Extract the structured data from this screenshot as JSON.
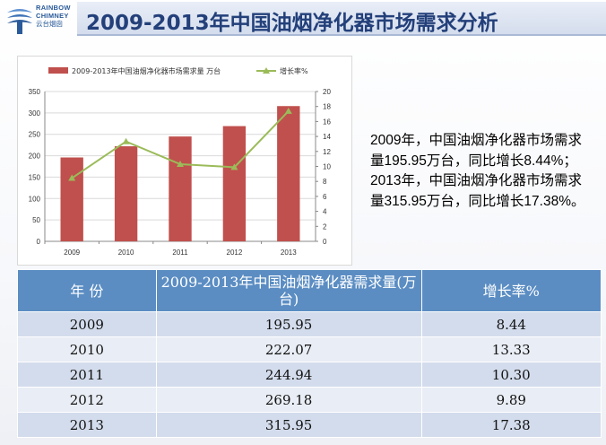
{
  "header": {
    "logo": {
      "line1": "RAINBOW",
      "line2": "CHIMNEY",
      "line3": "云台烟囱"
    },
    "title": "2009-2013年中国油烟净化器市场需求分析"
  },
  "description": "2009年，中国油烟净化器市场需求量195.95万台，同比增长8.44%；2013年，中国油烟净化器市场需求量315.95万台，同比增长17.38%。",
  "chart_data": {
    "type": "bar",
    "categories": [
      "2009",
      "2010",
      "2011",
      "2012",
      "2013"
    ],
    "series": [
      {
        "name": "2009-2013年中国油烟净化器市场需求量 万台",
        "kind": "bar",
        "axis": "left",
        "color": "#c0504d",
        "values": [
          195.95,
          222.07,
          244.94,
          269.18,
          315.95
        ]
      },
      {
        "name": "增长率%",
        "kind": "line",
        "axis": "right",
        "color": "#9bbb59",
        "values": [
          8.44,
          13.33,
          10.3,
          9.89,
          17.38
        ]
      }
    ],
    "ylim_left": [
      0,
      350
    ],
    "yticks_left": [
      "0",
      "50",
      "100",
      "150",
      "200",
      "250",
      "300",
      "350"
    ],
    "ylim_right": [
      0,
      20
    ],
    "yticks_right": [
      "0",
      "2",
      "4",
      "6",
      "8",
      "10",
      "12",
      "14",
      "16",
      "18",
      "20"
    ],
    "grid": true,
    "legend": "top"
  },
  "table": {
    "headers": [
      "年 份",
      "2009-2013年中国油烟净化器需求量(万台)",
      "增长率%"
    ],
    "rows": [
      [
        "2009",
        "195.95",
        "8.44"
      ],
      [
        "2010",
        "222.07",
        "13.33"
      ],
      [
        "2011",
        "244.94",
        "10.30"
      ],
      [
        "2012",
        "269.18",
        "9.89"
      ],
      [
        "2013",
        "315.95",
        "17.38"
      ]
    ]
  }
}
